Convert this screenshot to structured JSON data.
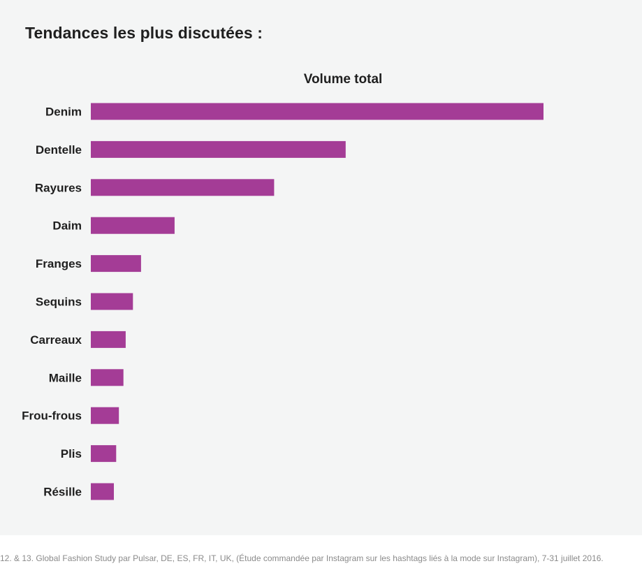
{
  "page": {
    "title": "Tendances les plus discutées :",
    "footnote": "12. & 13. Global Fashion Study par Pulsar, DE, ES, FR, IT, UK, (Étude commandée par Instagram sur les hashtags liés à la mode sur Instagram), 7-31 juillet 2016."
  },
  "chart_data": {
    "type": "bar",
    "orientation": "horizontal",
    "title": "Volume total",
    "categories": [
      "Denim",
      "Dentelle",
      "Rayures",
      "Daim",
      "Franges",
      "Sequins",
      "Carreaux",
      "Maille",
      "Frou-frous",
      "Plis",
      "Résille"
    ],
    "values": [
      100,
      56.3,
      40.5,
      18.5,
      11.1,
      9.3,
      7.7,
      7.2,
      6.2,
      5.6,
      5.1
    ],
    "xlim": [
      0,
      100
    ],
    "value_units": "relative (percent of Denim); no value axis shown",
    "grid": false,
    "legend": "none",
    "colors": {
      "bar": "#a43c96"
    }
  }
}
